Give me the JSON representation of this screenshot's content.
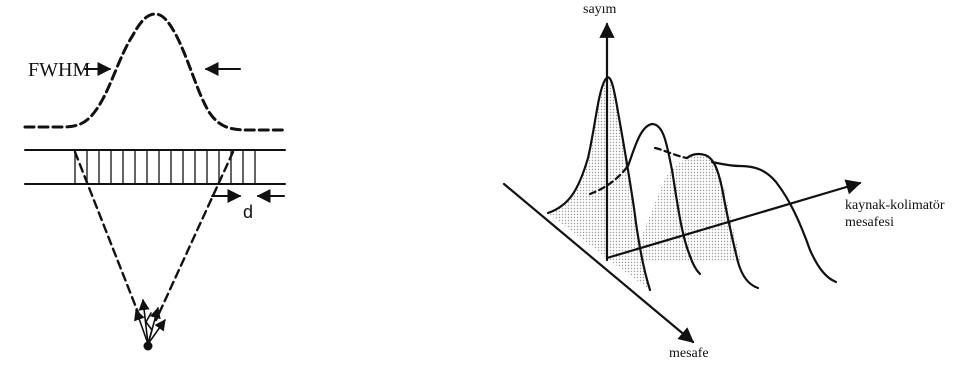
{
  "left_panel": {
    "fwhm_label": "FWHM",
    "d_label": "d"
  },
  "right_panel": {
    "count_axis_label": "sayım",
    "source_distance_label_line1": "kaynak-kolimatör",
    "source_distance_label_line2": "mesafesi",
    "distance_axis_label": "mesafe"
  },
  "colors": {
    "ink": "#111111",
    "shading": "#bdbdbd"
  }
}
